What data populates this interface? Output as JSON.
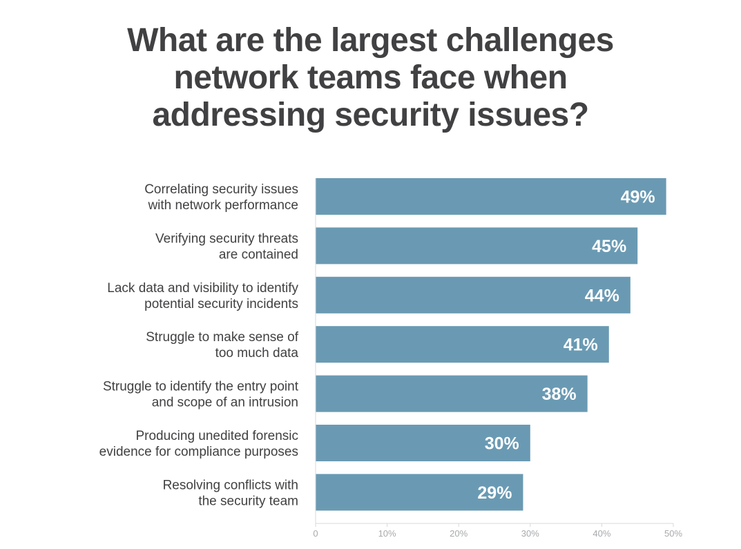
{
  "chart_data": {
    "type": "bar",
    "orientation": "horizontal",
    "title": "What are the largest challenges network teams face when addressing security issues?",
    "title_lines": [
      "What are the largest challenges",
      "network teams face when",
      "addressing security issues?"
    ],
    "categories": [
      "Correlating security issues with network performance",
      "Verifying security threats are contained",
      "Lack data and visibility to identify potential security incidents",
      "Struggle to make sense of too much data",
      "Struggle to identify the entry point and scope of an intrusion",
      "Producing unedited forensic evidence for compliance purposes",
      "Resolving conflicts with the security team"
    ],
    "category_lines": [
      [
        "Correlating security issues",
        "with network performance"
      ],
      [
        "Verifying security threats",
        "are contained"
      ],
      [
        "Lack data and visibility to identify",
        "potential security incidents"
      ],
      [
        "Struggle to make sense of",
        "too much data"
      ],
      [
        "Struggle to identify the entry point",
        "and scope of an intrusion"
      ],
      [
        "Producing unedited forensic",
        "evidence for compliance purposes"
      ],
      [
        "Resolving conflicts with",
        "the security team"
      ]
    ],
    "values": [
      49,
      45,
      44,
      41,
      38,
      30,
      29
    ],
    "value_labels": [
      "49%",
      "45%",
      "44%",
      "41%",
      "38%",
      "30%",
      "29%"
    ],
    "xlabel": "",
    "ylabel": "",
    "xlim": [
      0,
      50
    ],
    "xticks": [
      0,
      10,
      20,
      30,
      40,
      50
    ],
    "xtick_labels": [
      "0",
      "10%",
      "20%",
      "30%",
      "40%",
      "50%"
    ],
    "grid": false,
    "legend": "none",
    "colors": {
      "bar": "#6a9ab3",
      "title": "#414042",
      "label": "#414042",
      "value_label": "#ffffff",
      "axis": "#d9d9d9",
      "tick_label": "#a7a9ac"
    }
  }
}
